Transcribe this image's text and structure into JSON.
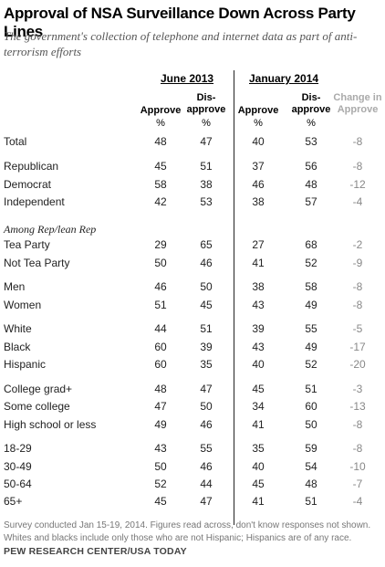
{
  "title": "Approval of NSA Surveillance Down Across Party Lines",
  "subtitle": "The government's collection of telephone and internet data as part of anti-terrorism efforts",
  "groups": {
    "june": "June 2013",
    "january": "January 2014"
  },
  "columns": {
    "approve": "Approve",
    "disapprove_1": "Dis-",
    "disapprove_2": "approve",
    "change_1": "Change in",
    "change_2": "Approve",
    "pct": "%"
  },
  "section_label": "Among Rep/lean Rep",
  "rows": [
    {
      "label": "Total",
      "j_app": "48",
      "j_dis": "47",
      "n_app": "40",
      "n_dis": "53",
      "chg": "-8"
    },
    {
      "label": "Republican",
      "j_app": "45",
      "j_dis": "51",
      "n_app": "37",
      "n_dis": "56",
      "chg": "-8"
    },
    {
      "label": "Democrat",
      "j_app": "58",
      "j_dis": "38",
      "n_app": "46",
      "n_dis": "48",
      "chg": "-12"
    },
    {
      "label": "Independent",
      "j_app": "42",
      "j_dis": "53",
      "n_app": "38",
      "n_dis": "57",
      "chg": "-4"
    },
    {
      "label": "Tea Party",
      "j_app": "29",
      "j_dis": "65",
      "n_app": "27",
      "n_dis": "68",
      "chg": "-2"
    },
    {
      "label": "Not Tea Party",
      "j_app": "50",
      "j_dis": "46",
      "n_app": "41",
      "n_dis": "52",
      "chg": "-9"
    },
    {
      "label": "Men",
      "j_app": "46",
      "j_dis": "50",
      "n_app": "38",
      "n_dis": "58",
      "chg": "-8"
    },
    {
      "label": "Women",
      "j_app": "51",
      "j_dis": "45",
      "n_app": "43",
      "n_dis": "49",
      "chg": "-8"
    },
    {
      "label": "White",
      "j_app": "44",
      "j_dis": "51",
      "n_app": "39",
      "n_dis": "55",
      "chg": "-5"
    },
    {
      "label": "Black",
      "j_app": "60",
      "j_dis": "39",
      "n_app": "43",
      "n_dis": "49",
      "chg": "-17"
    },
    {
      "label": "Hispanic",
      "j_app": "60",
      "j_dis": "35",
      "n_app": "40",
      "n_dis": "52",
      "chg": "-20"
    },
    {
      "label": "College grad+",
      "j_app": "48",
      "j_dis": "47",
      "n_app": "45",
      "n_dis": "51",
      "chg": "-3"
    },
    {
      "label": "Some college",
      "j_app": "47",
      "j_dis": "50",
      "n_app": "34",
      "n_dis": "60",
      "chg": "-13"
    },
    {
      "label": "High school or less",
      "j_app": "49",
      "j_dis": "46",
      "n_app": "41",
      "n_dis": "50",
      "chg": "-8"
    },
    {
      "label": "18-29",
      "j_app": "43",
      "j_dis": "55",
      "n_app": "35",
      "n_dis": "59",
      "chg": "-8"
    },
    {
      "label": "30-49",
      "j_app": "50",
      "j_dis": "46",
      "n_app": "40",
      "n_dis": "54",
      "chg": "-10"
    },
    {
      "label": "50-64",
      "j_app": "52",
      "j_dis": "44",
      "n_app": "45",
      "n_dis": "48",
      "chg": "-7"
    },
    {
      "label": "65+",
      "j_app": "45",
      "j_dis": "47",
      "n_app": "41",
      "n_dis": "51",
      "chg": "-4"
    }
  ],
  "note": "Survey conducted Jan 15-19, 2014. Figures read across, don't know responses not shown. Whites and blacks include only those who are not Hispanic; Hispanics are of any race.",
  "source": "PEW RESEARCH CENTER/USA TODAY",
  "colors": {
    "change": "#888888",
    "change_header": "#aaaaaa",
    "note": "#777777"
  }
}
